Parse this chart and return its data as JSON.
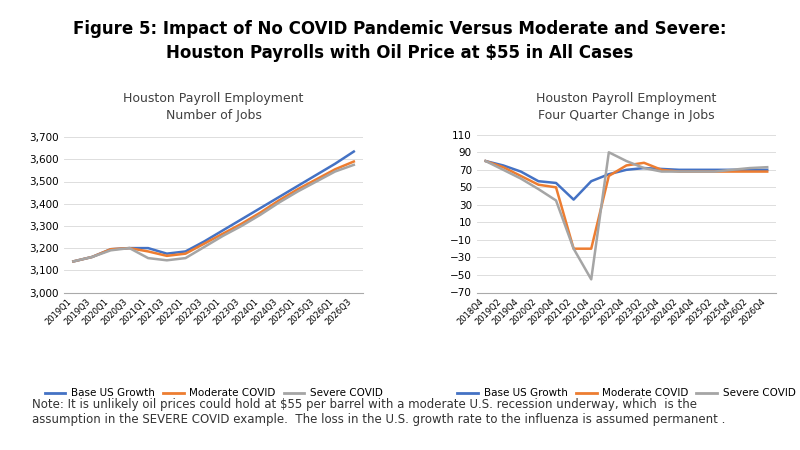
{
  "title_line1": "Figure 5: Impact of No COVID Pandemic Versus Moderate and Severe:",
  "title_line2": "Houston Payrolls with Oil Price at $55 in All Cases",
  "title_fontsize": 12,
  "title_fontweight": "bold",
  "left_title1": "Houston Payroll Employment",
  "left_title2": "Number of Jobs",
  "right_title1": "Houston Payroll Employment",
  "right_title2": "Four Quarter Change in Jobs",
  "subtitle_fontsize": 9,
  "subtitle_color": "#404040",
  "left_x_labels": [
    "2019Q1",
    "2019Q3",
    "2020Q1",
    "2020Q3",
    "2021Q1",
    "2021Q3",
    "2022Q1",
    "2022Q3",
    "2023Q1",
    "2023Q3",
    "2024Q1",
    "2024Q3",
    "2025Q1",
    "2025Q3",
    "2026Q1",
    "2026Q3"
  ],
  "right_x_labels": [
    "2018Q4",
    "2019Q2",
    "2019Q4",
    "2020Q2",
    "2020Q4",
    "2021Q2",
    "2021Q4",
    "2022Q2",
    "2022Q4",
    "2023Q2",
    "2023Q4",
    "2024Q2",
    "2024Q4",
    "2025Q2",
    "2025Q4",
    "2026Q2",
    "2026Q4"
  ],
  "left_ylim": [
    3000,
    3750
  ],
  "left_yticks": [
    3000,
    3100,
    3200,
    3300,
    3400,
    3500,
    3600,
    3700
  ],
  "right_ylim": [
    -70,
    120
  ],
  "right_yticks": [
    -70,
    -50,
    -30,
    -10,
    10,
    30,
    50,
    70,
    90,
    110
  ],
  "base_color": "#4472C4",
  "moderate_color": "#ED7D31",
  "severe_color": "#A5A5A5",
  "line_width": 1.8,
  "left_base": [
    3140,
    3160,
    3195,
    3200,
    3200,
    3175,
    3185,
    3230,
    3280,
    3330,
    3380,
    3430,
    3480,
    3530,
    3580,
    3635
  ],
  "left_moderate": [
    3140,
    3160,
    3195,
    3200,
    3185,
    3165,
    3175,
    3220,
    3265,
    3310,
    3360,
    3415,
    3465,
    3510,
    3555,
    3590
  ],
  "left_severe": [
    3140,
    3160,
    3190,
    3200,
    3155,
    3145,
    3155,
    3205,
    3255,
    3300,
    3350,
    3405,
    3455,
    3500,
    3545,
    3575
  ],
  "right_base": [
    80,
    75,
    68,
    57,
    55,
    36,
    57,
    65,
    70,
    72,
    71,
    70,
    70,
    70,
    70,
    70,
    70
  ],
  "right_moderate": [
    80,
    73,
    63,
    53,
    50,
    -20,
    -20,
    63,
    75,
    78,
    70,
    68,
    68,
    68,
    68,
    68,
    68
  ],
  "right_severe": [
    80,
    70,
    60,
    48,
    35,
    -20,
    -55,
    90,
    80,
    72,
    68,
    68,
    68,
    68,
    70,
    72,
    73
  ],
  "legend_labels": [
    "Base US Growth",
    "Moderate COVID",
    "Severe COVID"
  ],
  "legend_fontsize": 7.5,
  "note": "Note: It is unlikely oil prices could hold at $55 per barrel with a moderate U.S. recession underway, which  is the\nassumption in the SEVERE COVID example.  The loss in the U.S. growth rate to the influenza is assumed permanent .",
  "note_fontsize": 8.5,
  "bg_color": "#FFFFFF"
}
